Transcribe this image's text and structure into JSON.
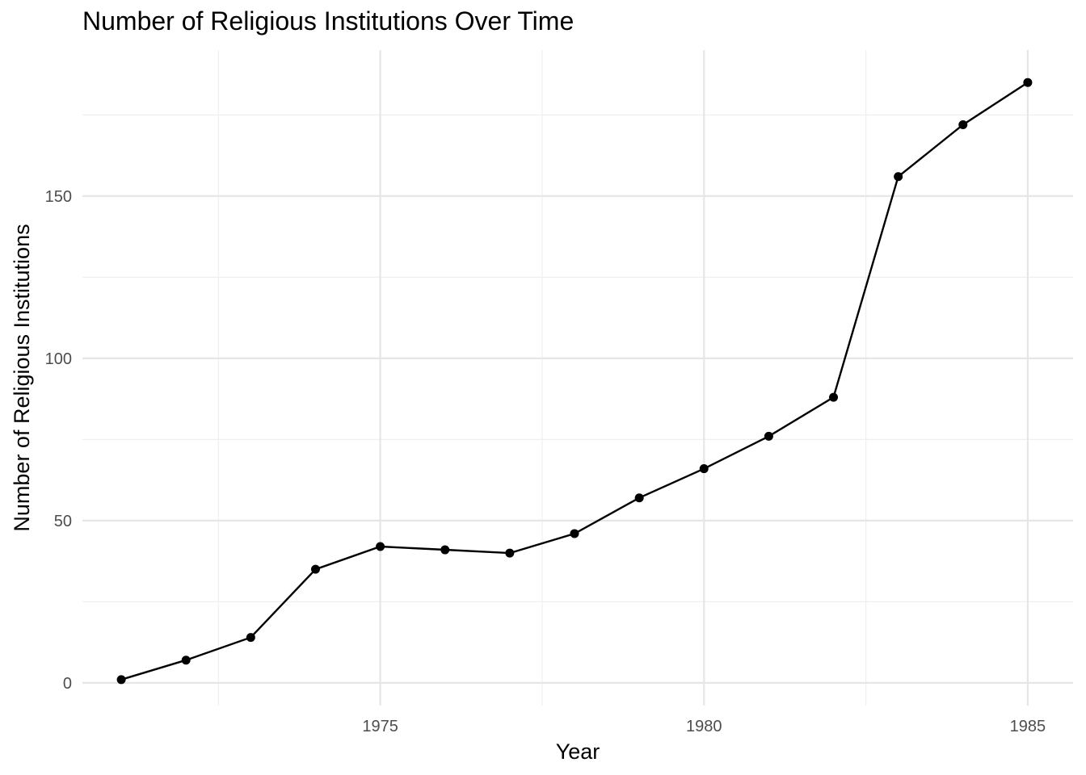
{
  "chart_data": {
    "type": "line",
    "title": "Number of Religious Institutions Over Time",
    "xlabel": "Year",
    "ylabel": "Number of Religious Institutions",
    "x": [
      1971,
      1972,
      1973,
      1974,
      1975,
      1976,
      1977,
      1978,
      1979,
      1980,
      1981,
      1982,
      1983,
      1984,
      1985
    ],
    "series": [
      {
        "values": [
          1,
          7,
          14,
          35,
          42,
          41,
          40,
          46,
          57,
          66,
          76,
          88,
          156,
          172,
          185
        ]
      }
    ],
    "xlim": [
      1970.4,
      1985.7
    ],
    "ylim": [
      -7,
      195
    ],
    "x_ticks": [
      1975,
      1980,
      1985
    ],
    "x_tick_labels": [
      "1975",
      "1980",
      "1985"
    ],
    "x_minor_ticks": [
      1972.5,
      1977.5,
      1982.5
    ],
    "y_ticks": [
      0,
      50,
      100,
      150
    ],
    "y_tick_labels": [
      "0",
      "50",
      "100",
      "150"
    ],
    "y_minor_ticks": [
      25,
      75,
      125,
      175
    ],
    "grid": true,
    "legend": "none",
    "line_color": "#000000",
    "point_color": "#000000",
    "gridline_color": "#e6e6e6",
    "background_color": "#ffffff"
  }
}
